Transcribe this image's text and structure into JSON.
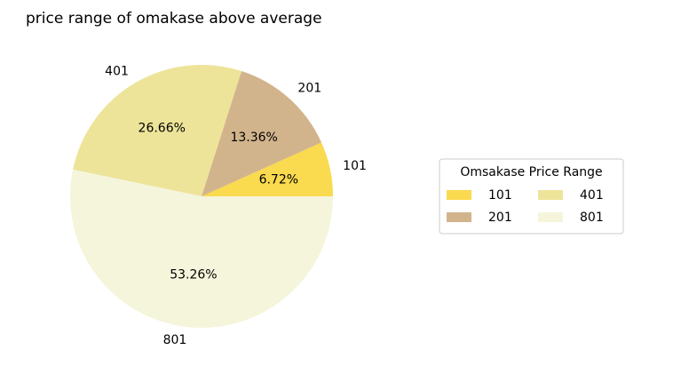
{
  "chart_data": {
    "type": "pie",
    "title": "price range of omakase above average",
    "categories": [
      "101",
      "201",
      "401",
      "801"
    ],
    "values": [
      6.72,
      13.36,
      26.66,
      53.26
    ],
    "value_labels": [
      "6.72%",
      "13.36%",
      "26.66%",
      "53.26%"
    ],
    "colors": [
      "#fada4e",
      "#d2b48c",
      "#ede49a",
      "#f5f5dc"
    ],
    "legend": {
      "title": "Omsakase Price Range",
      "placement": "center-right",
      "entries": [
        "101",
        "201",
        "401",
        "801"
      ]
    }
  }
}
